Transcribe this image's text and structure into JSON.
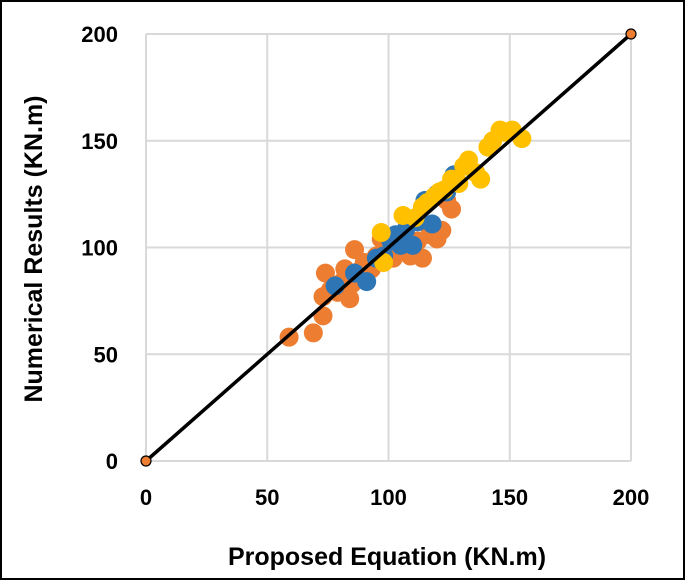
{
  "chart_data": {
    "type": "scatter",
    "title": "",
    "xlabel": "Proposed Equation (KN.m)",
    "ylabel": "Numerical Results (KN.m)",
    "xlim": [
      0,
      200
    ],
    "ylim": [
      0,
      200
    ],
    "x_ticks": [
      "0",
      "50",
      "100",
      "150",
      "200"
    ],
    "y_ticks": [
      "0",
      "50",
      "100",
      "150",
      "200"
    ],
    "grid": true,
    "legend": "none",
    "reference_line": {
      "x": [
        0,
        200
      ],
      "y": [
        0,
        200
      ],
      "color": "#000000",
      "marker_color": "#ED7D31"
    },
    "series": [
      {
        "color": "#ED7D31",
        "points": [
          [
            59,
            58
          ],
          [
            69,
            60
          ],
          [
            73,
            68
          ],
          [
            73,
            77
          ],
          [
            74,
            88
          ],
          [
            76,
            80
          ],
          [
            79,
            79
          ],
          [
            81,
            84
          ],
          [
            82,
            90
          ],
          [
            84,
            76
          ],
          [
            85,
            83
          ],
          [
            86,
            99
          ],
          [
            88,
            89
          ],
          [
            90,
            93
          ],
          [
            93,
            90
          ],
          [
            95,
            96
          ],
          [
            97,
            104
          ],
          [
            100,
            100
          ],
          [
            102,
            95
          ],
          [
            104,
            103
          ],
          [
            107,
            101
          ],
          [
            109,
            96
          ],
          [
            112,
            103
          ],
          [
            114,
            95
          ],
          [
            117,
            106
          ],
          [
            120,
            104
          ],
          [
            122,
            108
          ],
          [
            124,
            122
          ],
          [
            126,
            118
          ]
        ]
      },
      {
        "color": "#2E75B6",
        "points": [
          [
            78,
            82
          ],
          [
            86,
            88
          ],
          [
            91,
            84
          ],
          [
            95,
            95
          ],
          [
            98,
            96
          ],
          [
            101,
            103
          ],
          [
            103,
            106
          ],
          [
            105,
            101
          ],
          [
            107,
            108
          ],
          [
            110,
            101
          ],
          [
            112,
            112
          ],
          [
            115,
            122
          ],
          [
            118,
            111
          ],
          [
            120,
            125
          ],
          [
            124,
            126
          ],
          [
            127,
            134
          ]
        ]
      },
      {
        "color": "#FFC000",
        "points": [
          [
            97,
            107
          ],
          [
            98,
            93
          ],
          [
            106,
            115
          ],
          [
            111,
            114
          ],
          [
            114,
            119
          ],
          [
            116,
            121
          ],
          [
            119,
            124
          ],
          [
            121,
            126
          ],
          [
            123,
            127
          ],
          [
            126,
            132
          ],
          [
            129,
            130
          ],
          [
            131,
            138
          ],
          [
            133,
            141
          ],
          [
            136,
            135
          ],
          [
            138,
            132
          ],
          [
            141,
            147
          ],
          [
            143,
            150
          ],
          [
            146,
            155
          ],
          [
            148,
            154
          ],
          [
            151,
            155
          ],
          [
            155,
            151
          ]
        ]
      }
    ]
  }
}
